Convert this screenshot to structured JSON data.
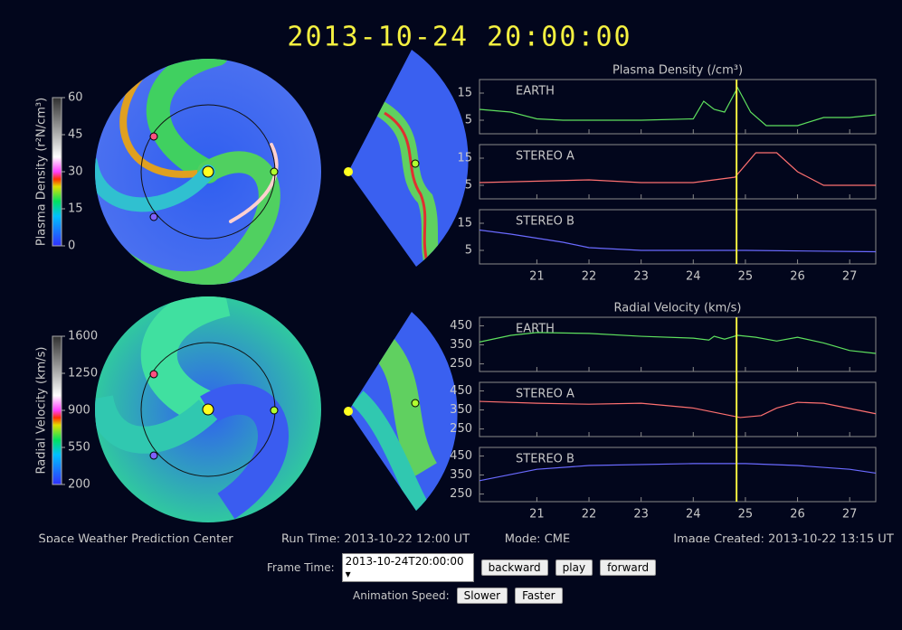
{
  "header": {
    "title": "2013-10-24 20:00:00"
  },
  "colorbars": [
    {
      "label": "Plasma Density (r²N/cm³)",
      "lim": [
        0,
        60
      ],
      "ticks": [
        60,
        45,
        30,
        15,
        0
      ]
    },
    {
      "label": "Radial Velocity (km/s)",
      "lim": [
        200,
        1600
      ],
      "ticks": [
        1600,
        1250,
        900,
        550,
        200
      ]
    }
  ],
  "plots": [
    {
      "title": "Plasma Density (/cm³)",
      "ylim": [
        0,
        20
      ],
      "yticks": [
        15,
        5
      ],
      "xlim": [
        19.9,
        27.5
      ],
      "xticks": [
        21,
        22,
        23,
        24,
        25,
        26,
        27
      ],
      "current_x": 24.83,
      "panels": [
        {
          "name": "EARTH",
          "color": "#5ee05e",
          "x": [
            19.9,
            20.5,
            21,
            21.5,
            22,
            23,
            24,
            24.2,
            24.4,
            24.6,
            24.85,
            25.1,
            25.4,
            26,
            26.5,
            27,
            27.5
          ],
          "values": [
            9,
            8,
            5.5,
            5,
            5,
            5,
            5.5,
            12,
            9,
            8,
            17,
            8,
            3,
            3,
            6,
            6,
            7
          ]
        },
        {
          "name": "STEREO A",
          "color": "#ff7070",
          "x": [
            19.9,
            22,
            23,
            24,
            24.8,
            25.2,
            25.6,
            26,
            26.5,
            27.5
          ],
          "values": [
            6,
            7,
            6,
            6,
            8,
            17,
            17,
            10,
            5,
            5
          ]
        },
        {
          "name": "STEREO B",
          "color": "#6a6aff",
          "x": [
            19.9,
            20.5,
            21.5,
            22,
            23,
            25,
            27.5
          ],
          "values": [
            12.5,
            11,
            8,
            6,
            5,
            5,
            4.5
          ]
        }
      ]
    },
    {
      "title": "Radial Velocity (km/s)",
      "ylim": [
        210,
        495
      ],
      "yticks": [
        450,
        350,
        250
      ],
      "xlim": [
        19.9,
        27.5
      ],
      "xticks": [
        21,
        22,
        23,
        24,
        25,
        26,
        27
      ],
      "current_x": 24.83,
      "panels": [
        {
          "name": "EARTH",
          "color": "#5ee05e",
          "x": [
            19.9,
            20.5,
            21,
            22,
            23,
            24,
            24.3,
            24.4,
            24.6,
            24.85,
            25.2,
            25.6,
            26,
            26.5,
            27,
            27.5
          ],
          "values": [
            365,
            400,
            415,
            410,
            395,
            385,
            375,
            395,
            380,
            400,
            390,
            370,
            390,
            360,
            320,
            305
          ]
        },
        {
          "name": "STEREO A",
          "color": "#ff7070",
          "x": [
            19.9,
            21,
            22,
            23,
            24,
            24.9,
            25.3,
            25.6,
            26,
            26.5,
            27.5
          ],
          "values": [
            395,
            385,
            380,
            385,
            360,
            310,
            320,
            360,
            390,
            385,
            330
          ]
        },
        {
          "name": "STEREO B",
          "color": "#6a6aff",
          "x": [
            19.9,
            21,
            22,
            24,
            25,
            26,
            27,
            27.5
          ],
          "values": [
            320,
            380,
            400,
            410,
            410,
            400,
            380,
            360
          ]
        }
      ]
    }
  ],
  "footer": {
    "org": "Space Weather Prediction Center",
    "run_time": "Run Time: 2013-10-22 12:00 UT",
    "mode": "Mode: CME",
    "created": "Image Created: 2013-10-22 13:15 UT"
  },
  "controls": {
    "frame_label": "Frame Time:",
    "frame_value": "2013-10-24T20:00:00",
    "backward": "backward",
    "play": "play",
    "forward": "forward",
    "speed_label": "Animation Speed:",
    "slower": "Slower",
    "faster": "Faster"
  }
}
